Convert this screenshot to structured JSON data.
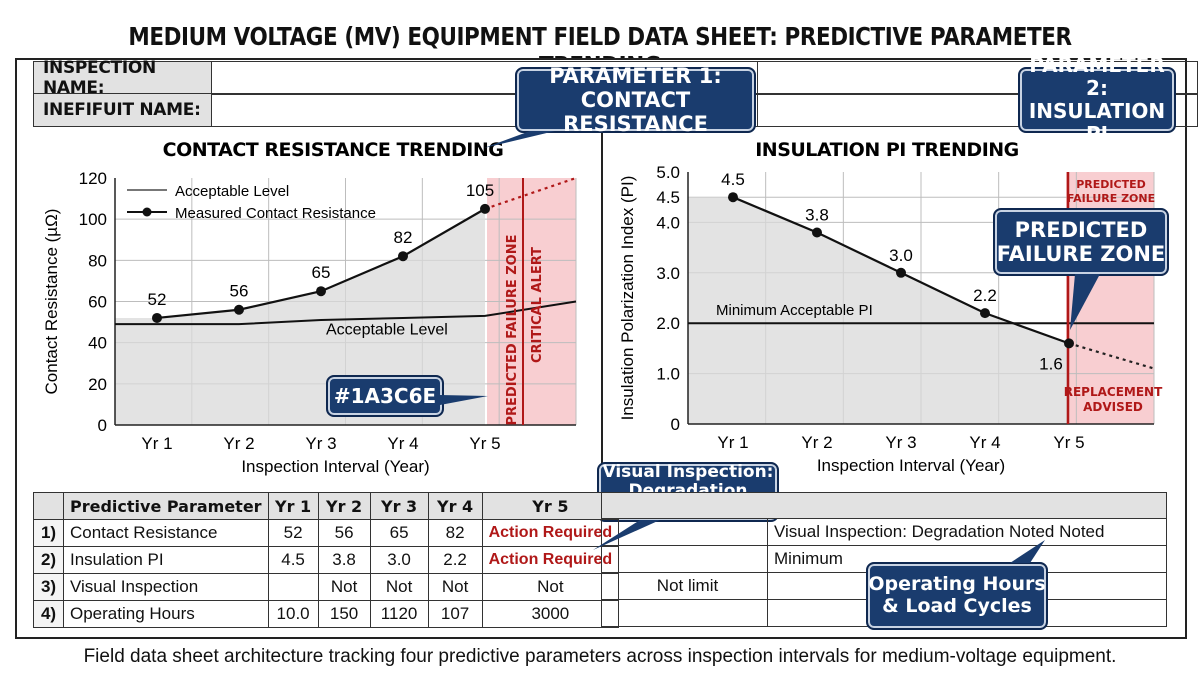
{
  "title": "MEDIUM VOLTAGE (MV) EQUIPMENT FIELD DATA SHEET: PREDICTIVE PARAMETER TRENDING",
  "header_fields": [
    {
      "label": "INSPECTION NAME:",
      "value": ""
    },
    {
      "label": "INEFIFUIT NAME:",
      "value": ""
    }
  ],
  "callouts": {
    "param1": [
      "PARAMETER 1:",
      "CONTACT RESISTANCE"
    ],
    "param2": [
      "PARAMETER 2:",
      "INSULATION PI"
    ],
    "predicted": [
      "PREDICTED",
      "FAILURE ZONE"
    ],
    "color_tag": "#1A3C6E",
    "visual": [
      "Visual Inspection:",
      "Degradation Noted"
    ],
    "hours": [
      "Operating Hours",
      "& Load Cycles"
    ]
  },
  "colors": {
    "navy": "#1a3c6e",
    "alert_red": "#b01818",
    "zone_pink": "#f7c6c9",
    "shade": "#d9d9d9"
  },
  "chart_data": [
    {
      "type": "line",
      "title": "CONTACT RESISTANCE TRENDING",
      "xlabel": "Inspection Interval (Year)",
      "ylabel": "Contact Resistance (µΩ)",
      "categories": [
        "Yr 1",
        "Yr 2",
        "Yr 3",
        "Yr 4",
        "Yr 5"
      ],
      "ylim": [
        0,
        120
      ],
      "yticks": [
        0,
        20,
        40,
        60,
        80,
        100,
        120
      ],
      "grid": true,
      "legend_position": "top-left",
      "legend": [
        "Acceptable Level",
        "Measured Contact Resistance"
      ],
      "series": [
        {
          "name": "Measured Contact Resistance",
          "values": [
            52,
            56,
            65,
            82,
            105
          ],
          "labels": [
            "52",
            "56",
            "65",
            "82",
            "105"
          ]
        },
        {
          "name": "Acceptable Level",
          "values": [
            49,
            49,
            51,
            52,
            53
          ]
        }
      ],
      "projection": {
        "from": 105,
        "to": 120
      },
      "acceptable_label": "Acceptable Level",
      "zone_labels": [
        "PREDICTED FAILURE ZONE",
        "CRITICAL ALERT"
      ]
    },
    {
      "type": "line",
      "title": "INSULATION PI TRENDING",
      "xlabel": "Inspection Interval (Year)",
      "ylabel": "Insulation Polarization Index (PI)",
      "categories": [
        "Yr 1",
        "Yr 2",
        "Yr 3",
        "Yr 4",
        "Yr 5"
      ],
      "ylim": [
        0,
        5
      ],
      "yticks": [
        "0",
        "1.0",
        "2.0",
        "3.0",
        "4.0",
        "4.5",
        "5.0"
      ],
      "grid": true,
      "series": [
        {
          "name": "Insulation PI",
          "values": [
            4.5,
            3.8,
            3.0,
            2.2,
            1.6
          ],
          "labels": [
            "4.5",
            "3.8",
            "3.0",
            "2.2",
            "1.6"
          ]
        }
      ],
      "min_acceptable": 2.0,
      "min_label": "Minimum Acceptable PI",
      "projection": {
        "from": 1.6,
        "to": 1.1
      },
      "zone_labels": [
        "PREDICTED FAILURE ZONE",
        "REPLACEMENT ADVISED"
      ]
    }
  ],
  "table": {
    "headers": [
      "",
      "Predictive Parameter",
      "Yr 1",
      "Yr 2",
      "Yr 3",
      "Yr 4",
      "Yr 5"
    ],
    "rows": [
      {
        "n": "1)",
        "param": "Contact Resistance",
        "v": [
          "52",
          "56",
          "65",
          "82"
        ],
        "yr5": "Action Required",
        "yr5_action": true
      },
      {
        "n": "2)",
        "param": "Insulation PI",
        "v": [
          "4.5",
          "3.8",
          "3.0",
          "2.2"
        ],
        "yr5": "Action Required",
        "yr5_action": true
      },
      {
        "n": "3)",
        "param": "Visual Inspection",
        "v": [
          "",
          "Not",
          "Not",
          "Not"
        ],
        "yr5": "Not",
        "yr5_action": false
      },
      {
        "n": "4)",
        "param": "Operating Hours",
        "v": [
          "10.0",
          "150",
          "1120",
          "107"
        ],
        "yr5": "3000",
        "yr5_action": false
      }
    ],
    "notes": {
      "row1": "Visual Inspection: Degradation Noted Noted",
      "row2": "Minimum",
      "row3_mid": "Not limit"
    }
  },
  "caption": "Field data sheet architecture tracking four predictive parameters across inspection intervals for medium-voltage equipment."
}
